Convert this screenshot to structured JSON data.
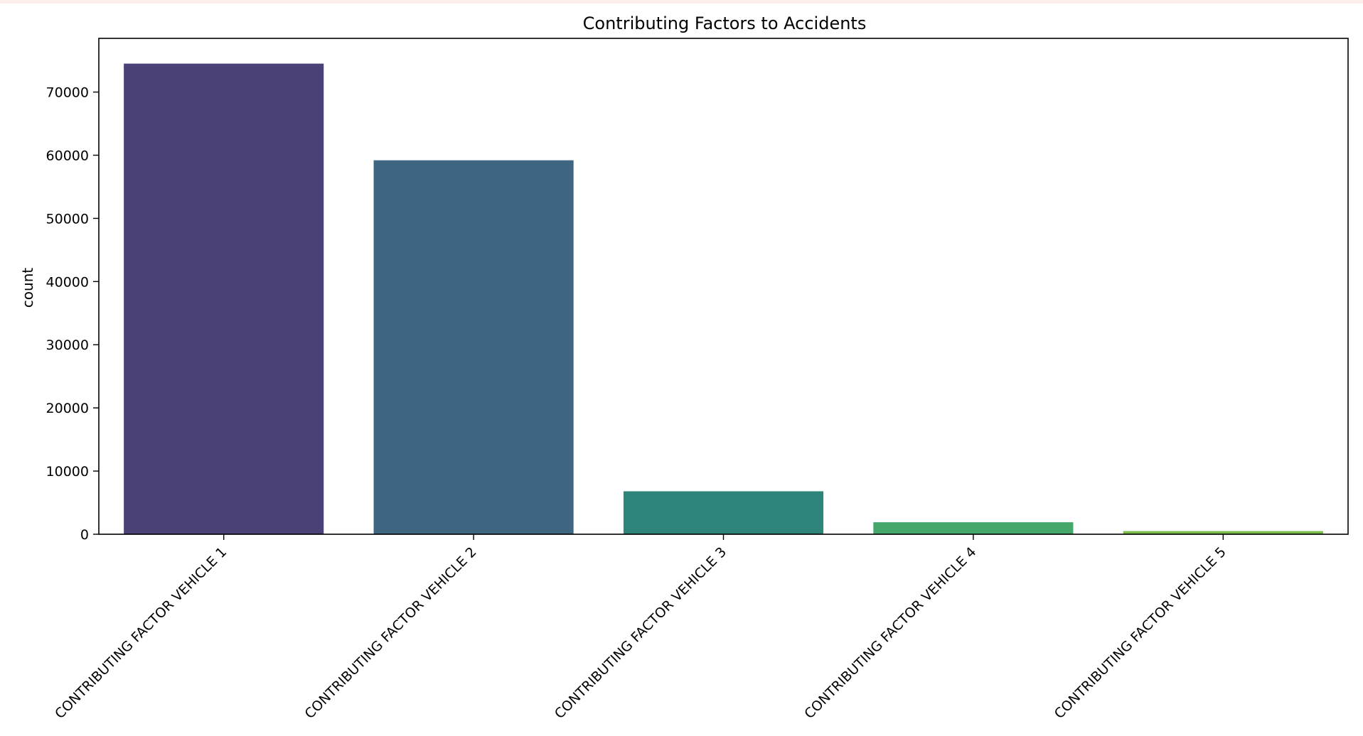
{
  "chart_data": {
    "type": "bar",
    "title": "Contributing Factors to Accidents",
    "xlabel": "",
    "ylabel": "count",
    "categories": [
      "CONTRIBUTING FACTOR VEHICLE 1",
      "CONTRIBUTING FACTOR VEHICLE 2",
      "CONTRIBUTING FACTOR VEHICLE 3",
      "CONTRIBUTING FACTOR VEHICLE 4",
      "CONTRIBUTING FACTOR VEHICLE 5"
    ],
    "values": [
      74500,
      59200,
      6800,
      1900,
      500
    ],
    "colors": [
      "#4a4277",
      "#3e6680",
      "#2e8479",
      "#45a86a",
      "#7dbd4c"
    ],
    "yticks": [
      0,
      10000,
      20000,
      30000,
      40000,
      50000,
      60000,
      70000
    ],
    "ytick_labels": [
      "0",
      "10000",
      "20000",
      "30000",
      "40000",
      "50000",
      "60000",
      "70000"
    ],
    "ylim": [
      0,
      78500
    ],
    "grid": false,
    "legend": false
  }
}
